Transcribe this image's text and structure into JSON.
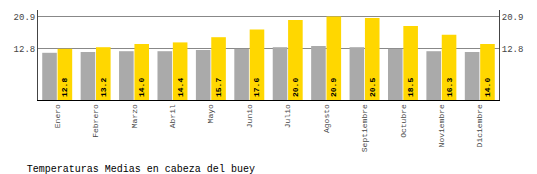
{
  "chart_data": {
    "type": "bar",
    "title": "Temperaturas Medias en cabeza del buey",
    "categories": [
      "Enero",
      "Febrero",
      "Marzo",
      "Abril",
      "Mayo",
      "Junio",
      "Julio",
      "Agosto",
      "Septiembre",
      "Octubre",
      "Noviembre",
      "Diciembre"
    ],
    "series": [
      {
        "color": "#AAAAAA",
        "values": [
          11.8,
          12.0,
          12.2,
          12.2,
          12.5,
          12.8,
          13.2,
          13.5,
          13.2,
          12.8,
          12.2,
          12.0
        ]
      },
      {
        "color": "#FFD700",
        "values": [
          12.8,
          13.2,
          14.0,
          14.4,
          15.7,
          17.6,
          20.0,
          20.9,
          20.5,
          18.5,
          16.3,
          14.0
        ],
        "data_labels": true,
        "value_labels": [
          "12.8",
          "13.2",
          "14.0",
          "14.4",
          "15.7",
          "17.6",
          "20.0",
          "20.9",
          "20.5",
          "18.5",
          "16.3",
          "14.0"
        ]
      }
    ],
    "ylim": [
      0,
      22.5
    ],
    "yticks": [
      12.8,
      20.9
    ],
    "y2lim": [
      0,
      22.5
    ],
    "y2ticks": [
      12.8,
      20.9
    ],
    "grid": true
  }
}
